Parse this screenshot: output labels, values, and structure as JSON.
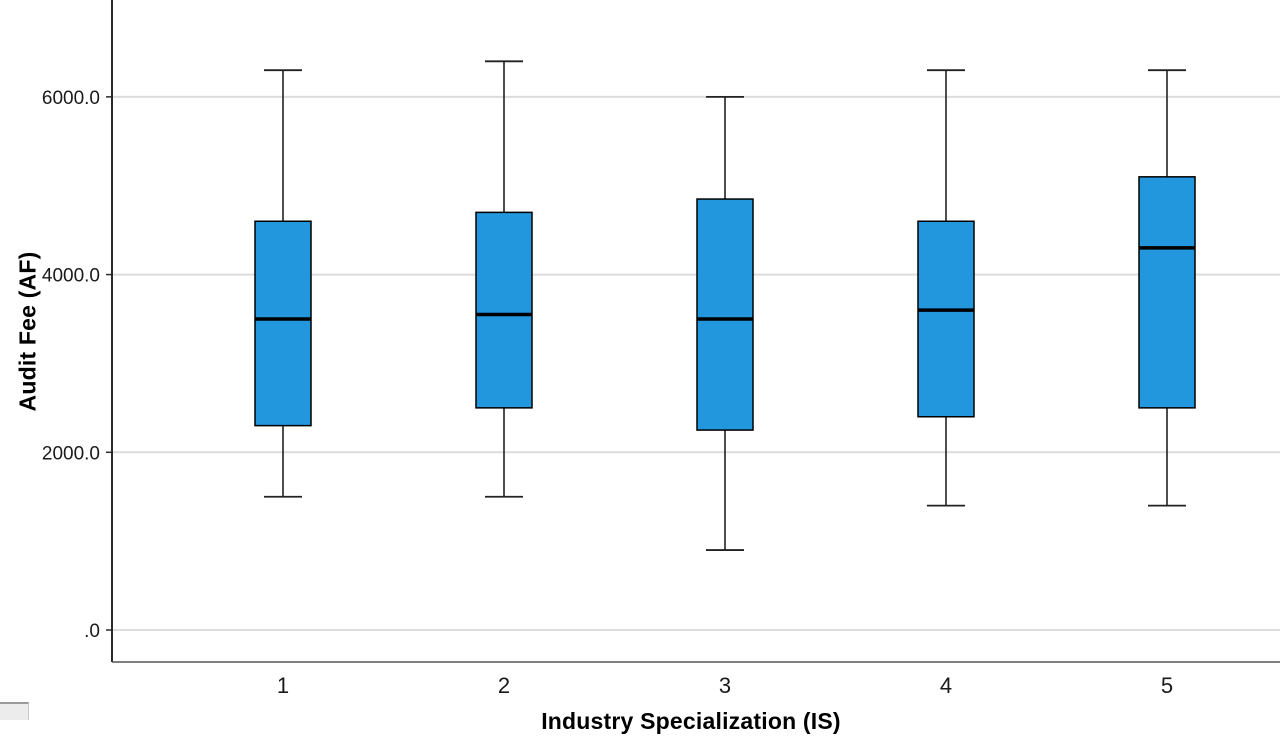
{
  "chart_data": {
    "type": "boxplot",
    "title": "",
    "xlabel": "Industry Specialization (IS)",
    "ylabel": "Audit Fee (AF)",
    "categories": [
      "1",
      "2",
      "3",
      "4",
      "5"
    ],
    "series": [
      {
        "category": "1",
        "whisker_low": 1500,
        "q1": 2300,
        "median": 3500,
        "q3": 4600,
        "whisker_high": 6300
      },
      {
        "category": "2",
        "whisker_low": 1500,
        "q1": 2500,
        "median": 3550,
        "q3": 4700,
        "whisker_high": 6400
      },
      {
        "category": "3",
        "whisker_low": 900,
        "q1": 2250,
        "median": 3500,
        "q3": 4850,
        "whisker_high": 6000
      },
      {
        "category": "4",
        "whisker_low": 1400,
        "q1": 2400,
        "median": 3600,
        "q3": 4600,
        "whisker_high": 6300
      },
      {
        "category": "5",
        "whisker_low": 1400,
        "q1": 2500,
        "median": 4300,
        "q3": 5100,
        "whisker_high": 6300
      }
    ],
    "yticks": [
      {
        "value": 0,
        "label": ".0"
      },
      {
        "value": 2000,
        "label": "2000.0"
      },
      {
        "value": 4000,
        "label": "4000.0"
      },
      {
        "value": 6000,
        "label": "6000.0"
      }
    ],
    "ylim": [
      -360,
      7090
    ],
    "grid": true,
    "legend": "none",
    "box_fill": "#2397dd",
    "box_stroke": "#000000",
    "whisker_color": "#222222",
    "gridline_color": "#dcdcdc",
    "axis_color": "#2a2a2a",
    "tick_label_color": "#1a1a1a"
  }
}
